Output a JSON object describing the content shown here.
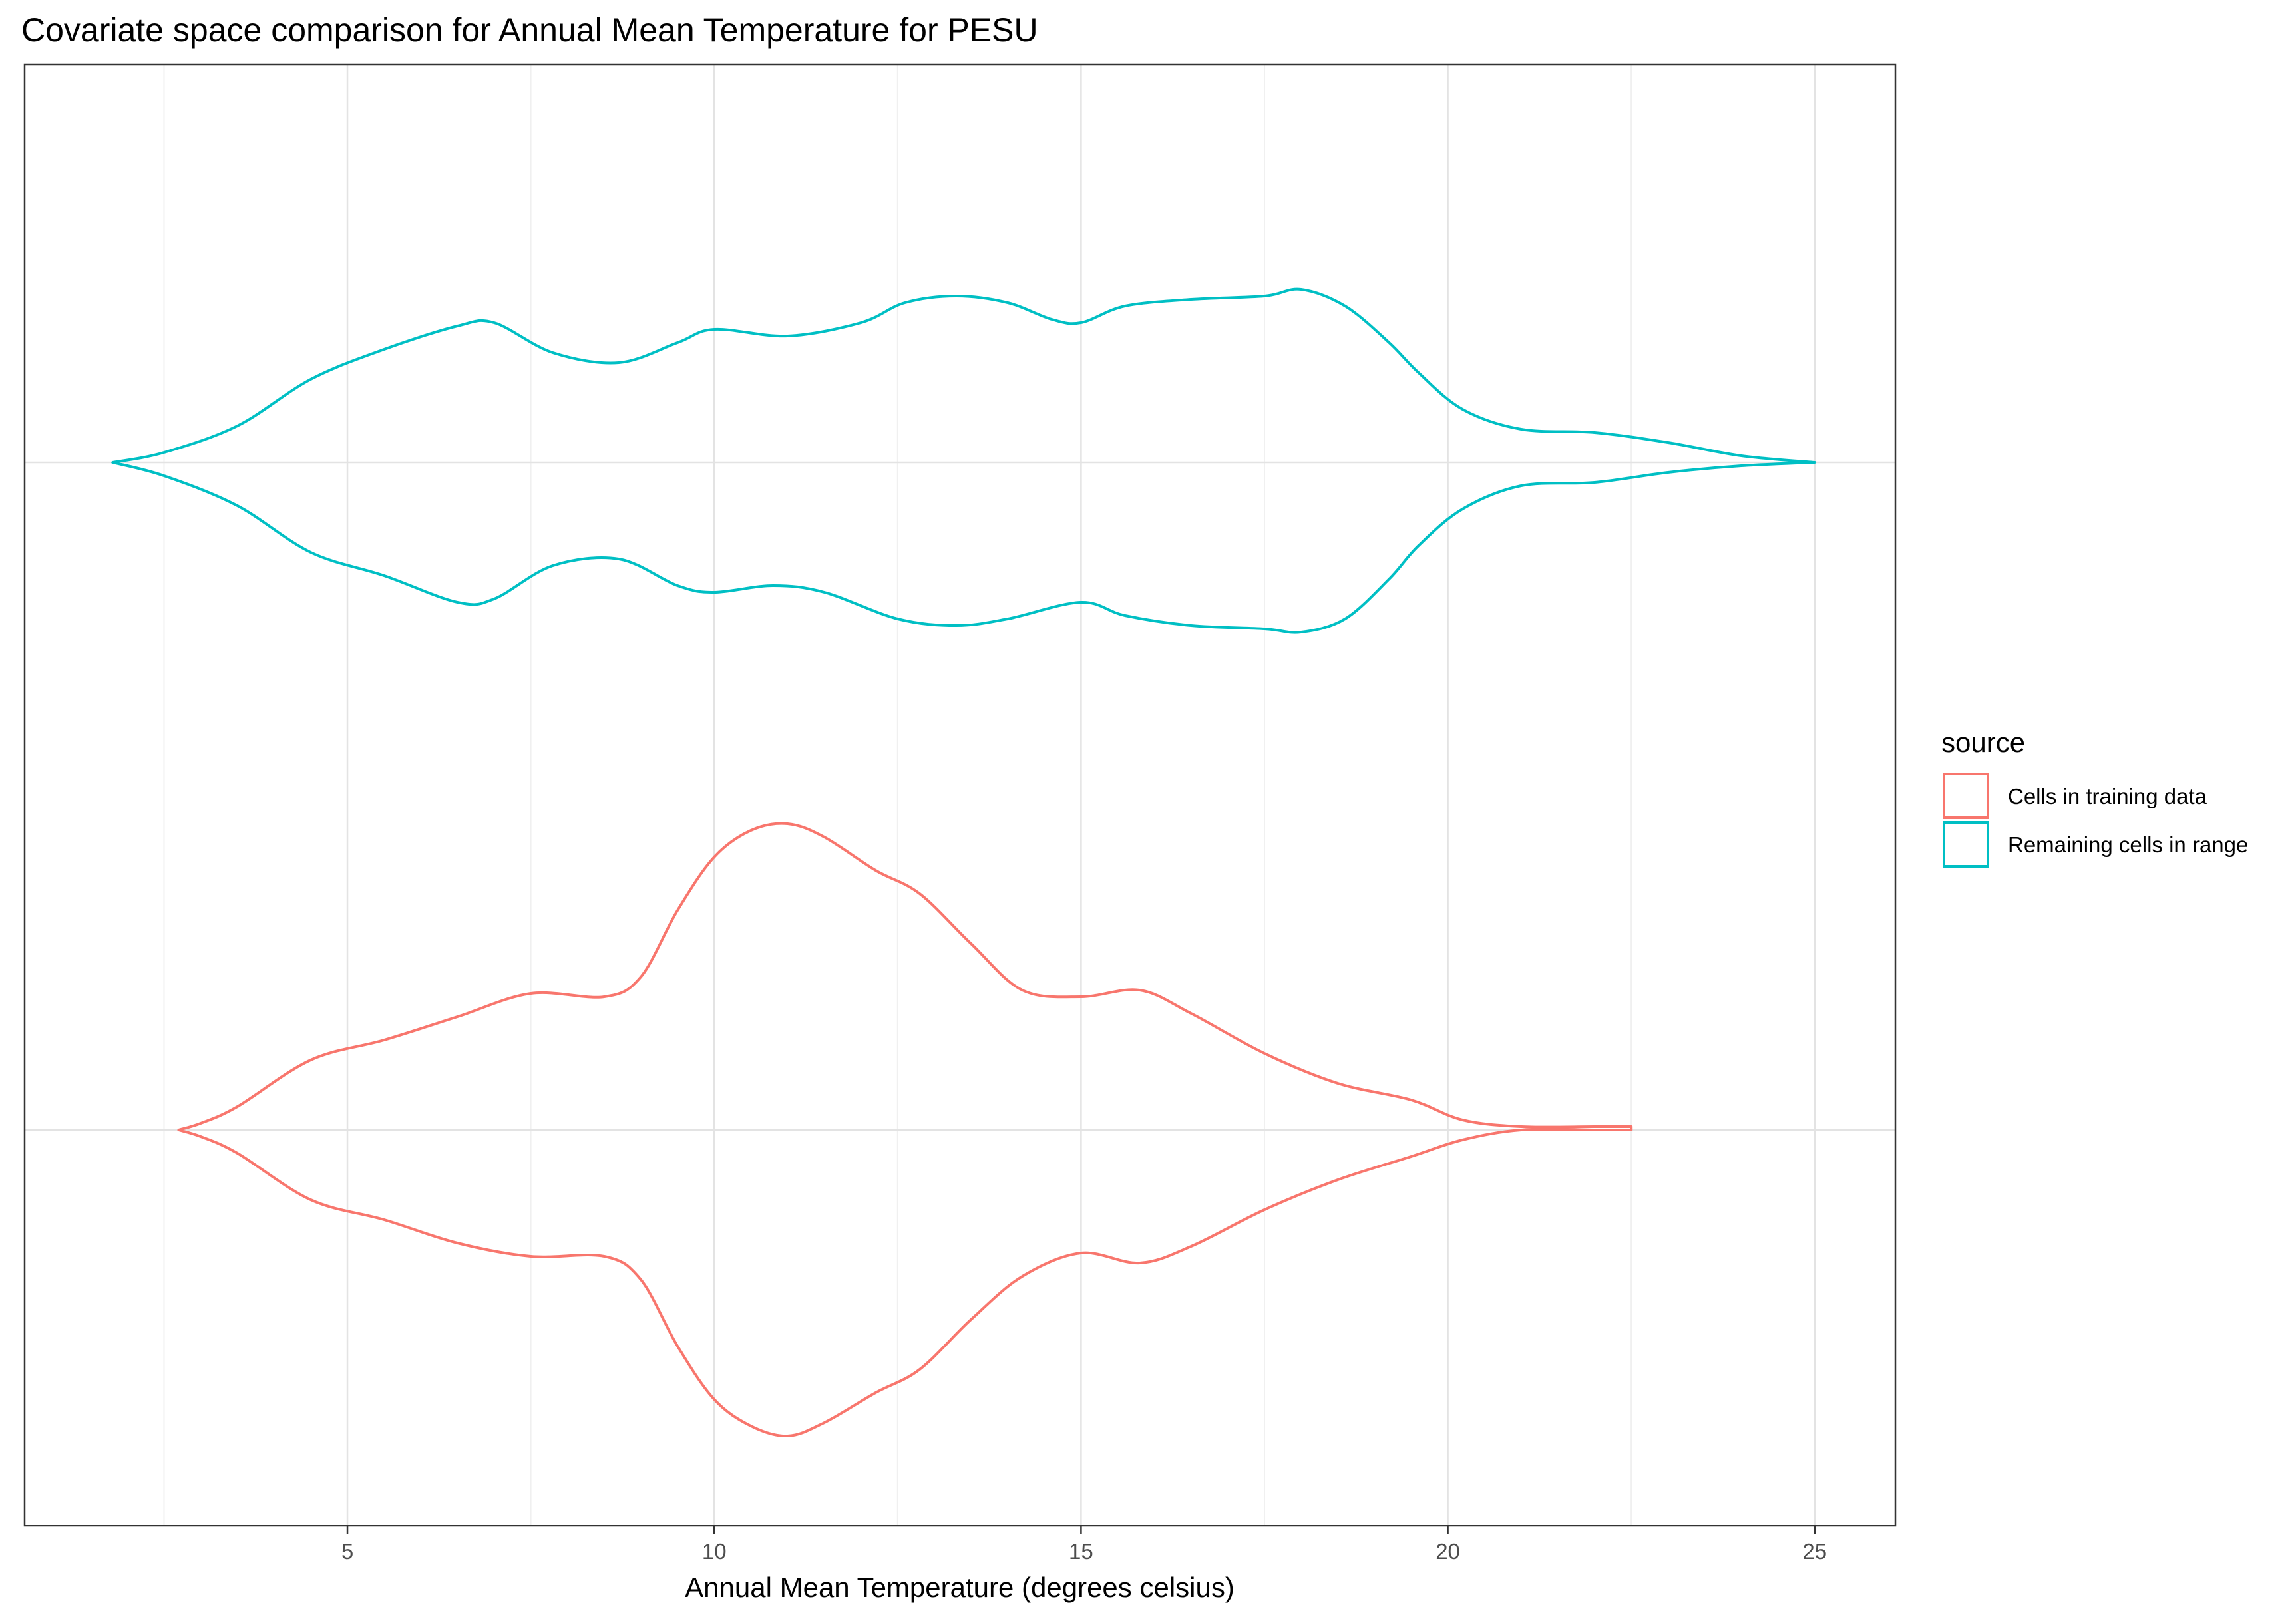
{
  "chart_data": {
    "type": "violin",
    "orientation": "horizontal",
    "title": "Covariate space comparison for Annual Mean Temperature for PESU",
    "xlabel": "Annual Mean Temperature (degrees celsius)",
    "ylabel": "",
    "xlim": [
      0.6,
      26.1
    ],
    "x_ticks": [
      5,
      10,
      15,
      20,
      25
    ],
    "grid": true,
    "legend": {
      "title": "source",
      "position": "right",
      "entries": [
        {
          "label": "Cells in training data",
          "color": "#F8766D"
        },
        {
          "label": "Remaining cells in range",
          "color": "#00BFC4"
        }
      ]
    },
    "series": [
      {
        "name": "Remaining cells in range",
        "color": "#00BFC4",
        "row": 0,
        "range": [
          1.8,
          25.0
        ],
        "density_upper": [
          [
            1.8,
            0.0
          ],
          [
            2.5,
            0.03
          ],
          [
            3.5,
            0.11
          ],
          [
            4.5,
            0.25
          ],
          [
            5.5,
            0.34
          ],
          [
            6.5,
            0.41
          ],
          [
            7.0,
            0.42
          ],
          [
            7.8,
            0.33
          ],
          [
            8.7,
            0.3
          ],
          [
            9.5,
            0.36
          ],
          [
            10.0,
            0.4
          ],
          [
            11.0,
            0.38
          ],
          [
            12.0,
            0.42
          ],
          [
            12.6,
            0.48
          ],
          [
            13.3,
            0.5
          ],
          [
            14.0,
            0.48
          ],
          [
            14.6,
            0.43
          ],
          [
            15.0,
            0.42
          ],
          [
            15.6,
            0.47
          ],
          [
            16.5,
            0.49
          ],
          [
            17.5,
            0.5
          ],
          [
            18.0,
            0.52
          ],
          [
            18.6,
            0.47
          ],
          [
            19.2,
            0.36
          ],
          [
            19.6,
            0.27
          ],
          [
            20.2,
            0.16
          ],
          [
            21.0,
            0.1
          ],
          [
            22.0,
            0.09
          ],
          [
            23.0,
            0.06
          ],
          [
            24.0,
            0.02
          ],
          [
            25.0,
            0.0
          ]
        ],
        "density_lower": [
          [
            1.8,
            0.0
          ],
          [
            2.5,
            0.04
          ],
          [
            3.5,
            0.13
          ],
          [
            4.5,
            0.27
          ],
          [
            5.5,
            0.34
          ],
          [
            6.5,
            0.42
          ],
          [
            7.0,
            0.41
          ],
          [
            7.8,
            0.31
          ],
          [
            8.7,
            0.29
          ],
          [
            9.5,
            0.37
          ],
          [
            10.0,
            0.39
          ],
          [
            10.8,
            0.37
          ],
          [
            11.5,
            0.39
          ],
          [
            12.5,
            0.47
          ],
          [
            13.3,
            0.49
          ],
          [
            14.0,
            0.47
          ],
          [
            15.0,
            0.42
          ],
          [
            15.6,
            0.46
          ],
          [
            16.5,
            0.49
          ],
          [
            17.5,
            0.5
          ],
          [
            18.0,
            0.51
          ],
          [
            18.6,
            0.47
          ],
          [
            19.2,
            0.35
          ],
          [
            19.6,
            0.25
          ],
          [
            20.2,
            0.14
          ],
          [
            21.0,
            0.07
          ],
          [
            22.0,
            0.06
          ],
          [
            23.0,
            0.03
          ],
          [
            24.0,
            0.01
          ],
          [
            25.0,
            0.0
          ]
        ]
      },
      {
        "name": "Cells in training data",
        "color": "#F8766D",
        "row": 1,
        "range": [
          2.7,
          22.5
        ],
        "density_upper": [
          [
            2.7,
            0.0
          ],
          [
            3.0,
            0.02
          ],
          [
            3.5,
            0.07
          ],
          [
            4.5,
            0.21
          ],
          [
            5.5,
            0.27
          ],
          [
            6.5,
            0.34
          ],
          [
            7.5,
            0.41
          ],
          [
            8.5,
            0.4
          ],
          [
            9.0,
            0.46
          ],
          [
            9.5,
            0.66
          ],
          [
            10.0,
            0.82
          ],
          [
            10.5,
            0.9
          ],
          [
            11.0,
            0.92
          ],
          [
            11.5,
            0.88
          ],
          [
            12.2,
            0.78
          ],
          [
            12.8,
            0.71
          ],
          [
            13.5,
            0.56
          ],
          [
            14.2,
            0.42
          ],
          [
            15.0,
            0.4
          ],
          [
            15.8,
            0.42
          ],
          [
            16.5,
            0.35
          ],
          [
            17.5,
            0.23
          ],
          [
            18.5,
            0.14
          ],
          [
            19.5,
            0.09
          ],
          [
            20.2,
            0.03
          ],
          [
            21.0,
            0.01
          ],
          [
            22.0,
            0.01
          ],
          [
            22.5,
            0.01
          ]
        ],
        "density_lower": [
          [
            2.7,
            0.0
          ],
          [
            3.0,
            0.02
          ],
          [
            3.5,
            0.07
          ],
          [
            4.5,
            0.21
          ],
          [
            5.5,
            0.27
          ],
          [
            6.5,
            0.34
          ],
          [
            7.5,
            0.38
          ],
          [
            8.5,
            0.38
          ],
          [
            9.0,
            0.45
          ],
          [
            9.5,
            0.65
          ],
          [
            10.0,
            0.81
          ],
          [
            10.5,
            0.89
          ],
          [
            11.0,
            0.92
          ],
          [
            11.5,
            0.88
          ],
          [
            12.2,
            0.79
          ],
          [
            12.8,
            0.72
          ],
          [
            13.5,
            0.57
          ],
          [
            14.2,
            0.44
          ],
          [
            15.0,
            0.37
          ],
          [
            15.8,
            0.4
          ],
          [
            16.5,
            0.35
          ],
          [
            17.5,
            0.24
          ],
          [
            18.5,
            0.15
          ],
          [
            19.5,
            0.08
          ],
          [
            20.2,
            0.03
          ],
          [
            21.0,
            0.0
          ],
          [
            22.0,
            0.0
          ],
          [
            22.5,
            0.0
          ]
        ]
      }
    ]
  }
}
